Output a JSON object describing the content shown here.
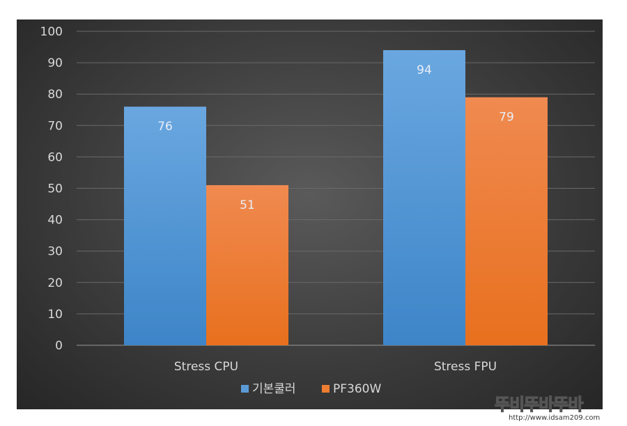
{
  "chart_data": {
    "type": "bar",
    "categories": [
      "Stress CPU",
      "Stress FPU"
    ],
    "series": [
      {
        "name": "기본쿨러",
        "values": [
          76,
          94
        ],
        "color": "#5b9bd5"
      },
      {
        "name": "PF360W",
        "values": [
          51,
          79
        ],
        "color": "#ed7d31"
      }
    ],
    "yticks": [
      0,
      10,
      20,
      30,
      40,
      50,
      60,
      70,
      80,
      90,
      100
    ],
    "ylim": [
      0,
      100
    ],
    "grid": true,
    "legend_position": "bottom"
  },
  "watermark": {
    "text": "뚜비뚜바뚜바",
    "url": "http://www.idsam209.com"
  }
}
